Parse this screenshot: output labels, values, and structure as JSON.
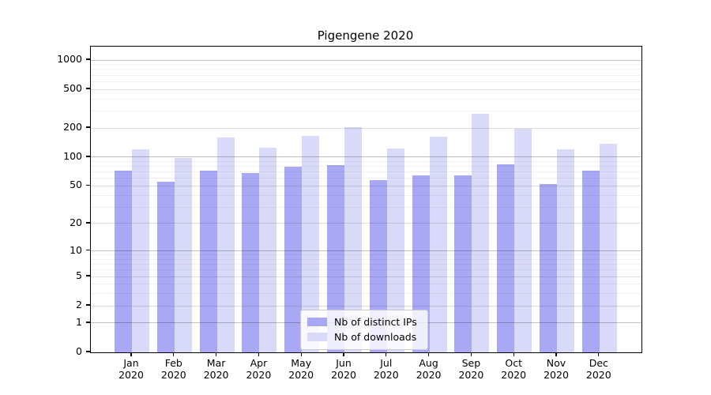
{
  "title": "Pigengene 2020",
  "chart_data": {
    "type": "bar",
    "title": "Pigengene 2020",
    "categories": [
      "Jan 2020",
      "Feb 2020",
      "Mar 2020",
      "Apr 2020",
      "May 2020",
      "Jun 2020",
      "Jul 2020",
      "Aug 2020",
      "Sep 2020",
      "Oct 2020",
      "Nov 2020",
      "Dec 2020"
    ],
    "series": [
      {
        "name": "Nb of distinct IPs",
        "color": "#a8a8f4",
        "values": [
          72,
          55,
          72,
          68,
          79,
          82,
          58,
          64,
          64,
          84,
          52,
          72
        ]
      },
      {
        "name": "Nb of downloads",
        "color": "#d9d9f9",
        "values": [
          120,
          97,
          160,
          125,
          165,
          205,
          122,
          162,
          280,
          197,
          120,
          138
        ]
      }
    ],
    "xlabel": "",
    "ylabel": "",
    "yscale": "log1p",
    "ylim": [
      0,
      1370
    ],
    "y_tick_values": [
      1000,
      500,
      200,
      100,
      50,
      20,
      10,
      5,
      2,
      1,
      0
    ],
    "y_tick_labels": [
      "1000",
      "500",
      "200",
      "100",
      "50",
      "20",
      "10",
      "5",
      "2",
      "1",
      "0"
    ],
    "grid": true,
    "legend_position": "lower-center",
    "legend": [
      {
        "label": "Nb of distinct IPs",
        "color": "#a8a8f4"
      },
      {
        "label": "Nb of downloads",
        "color": "#d9d9f9"
      }
    ]
  }
}
